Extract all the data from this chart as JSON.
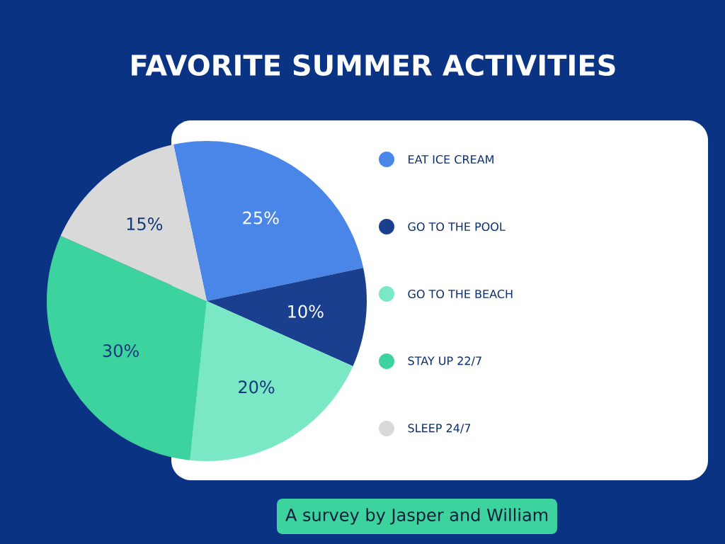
{
  "chart_data": {
    "type": "pie",
    "title": "FAVORITE SUMMER ACTIVITIES",
    "categories": [
      "EAT  ICE CREAM",
      "GO TO THE POOL",
      "GO TO  THE  BEACH",
      "STAY UP 22/7",
      "SLEEP 24/7"
    ],
    "values": [
      25,
      10,
      20,
      30,
      15
    ],
    "colors": [
      "#4a86e8",
      "#1a3f8f",
      "#7ae8c4",
      "#3dd39e",
      "#d9d9d9"
    ],
    "value_labels": [
      "25%",
      "10%",
      "20%",
      "30%",
      "15%"
    ],
    "legend": "right",
    "annotations": [
      "A survey by Jasper and William"
    ]
  }
}
